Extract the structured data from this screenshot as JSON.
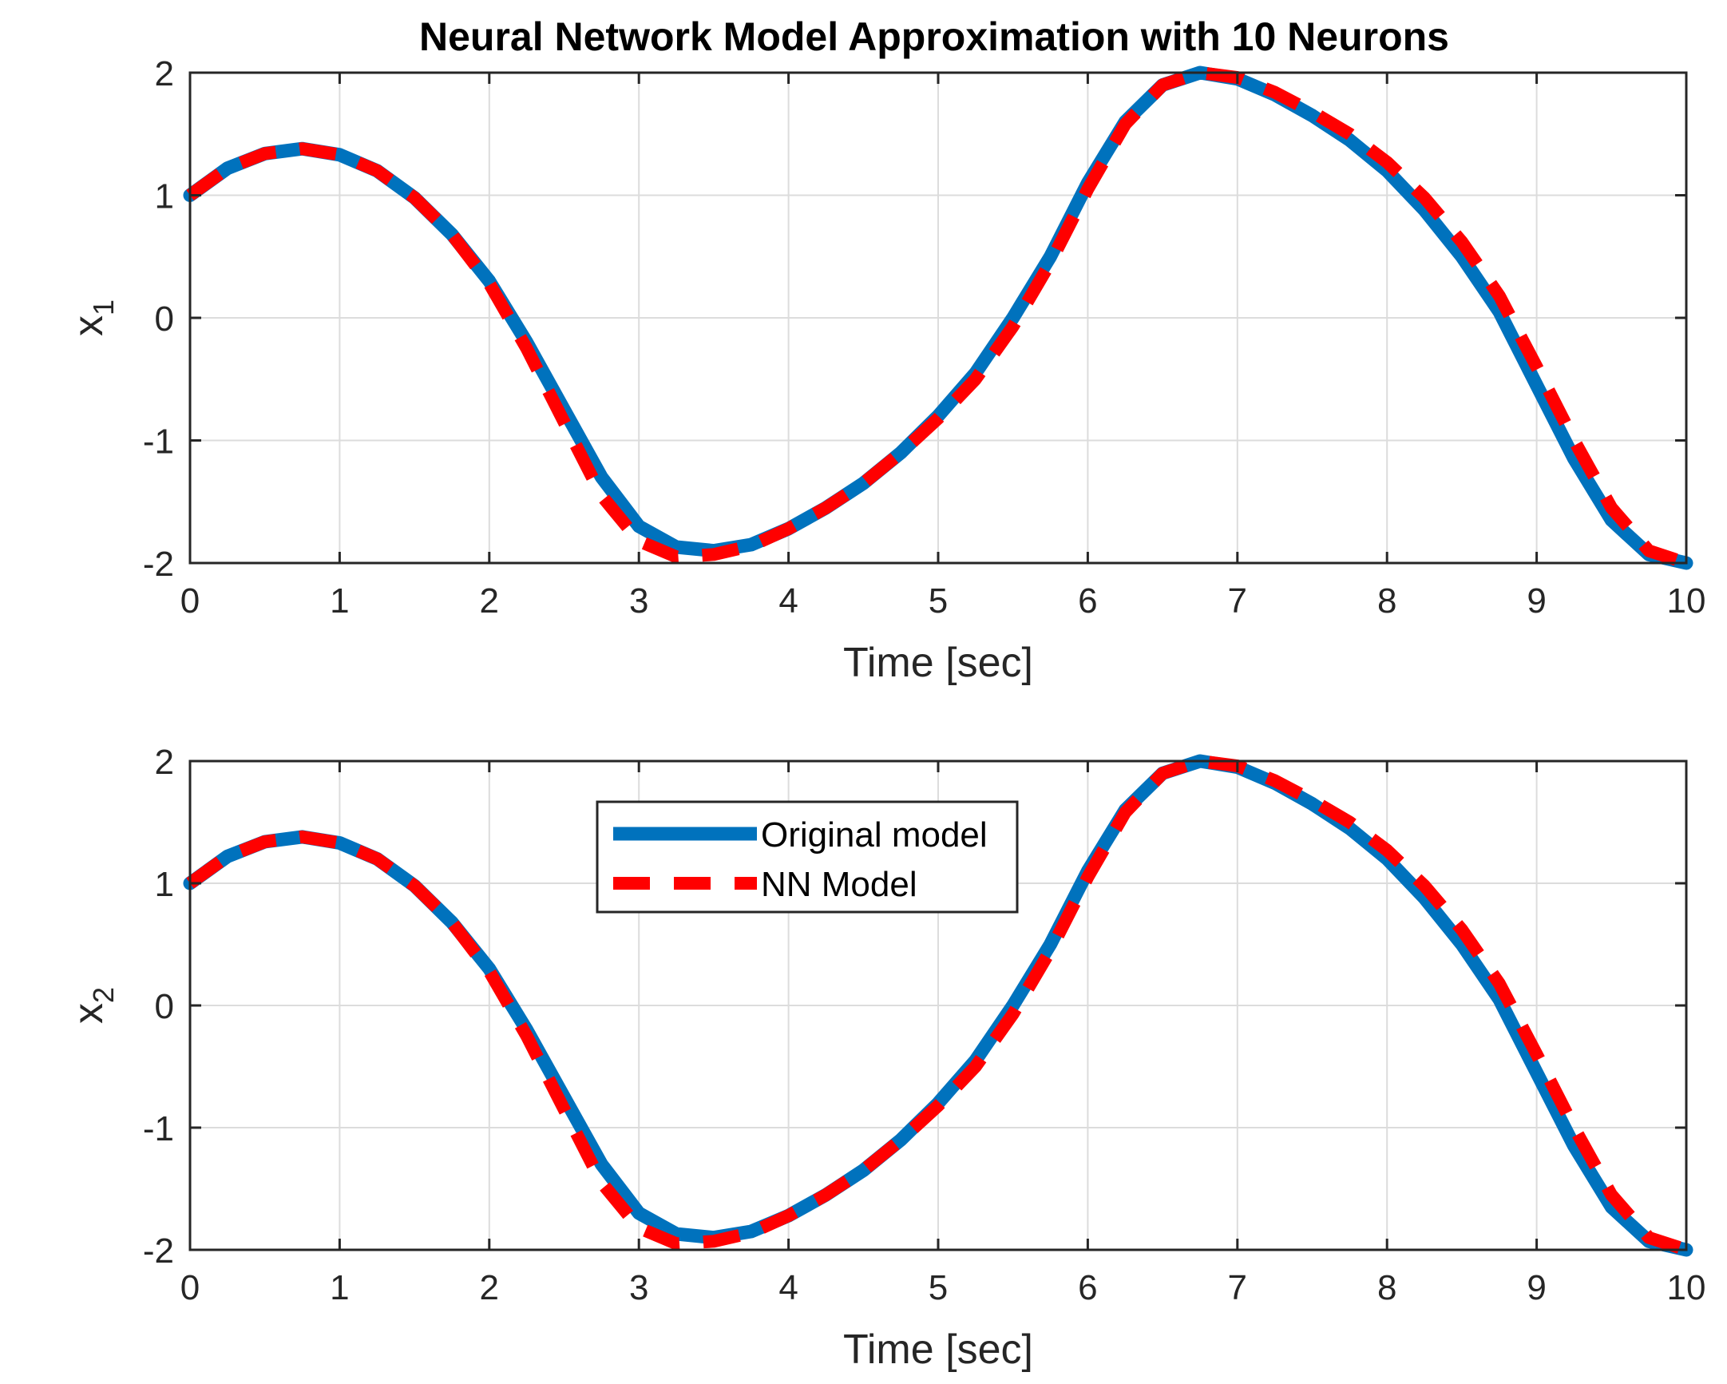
{
  "chart_data": [
    {
      "type": "line",
      "title": "Neural Network Model Approximation with 10 Neurons",
      "xlabel": "Time [sec]",
      "ylabel": "x",
      "ylabel_subscript": "1",
      "xlim": [
        0,
        10
      ],
      "ylim": [
        -2,
        2
      ],
      "xticks": [
        "0",
        "1",
        "2",
        "3",
        "4",
        "5",
        "6",
        "7",
        "8",
        "9",
        "10"
      ],
      "yticks": [
        "-2",
        "-1",
        "0",
        "1",
        "2"
      ],
      "grid": true,
      "legend": false,
      "x": [
        0,
        0.25,
        0.5,
        0.75,
        1,
        1.25,
        1.5,
        1.75,
        2,
        2.25,
        2.5,
        2.75,
        3,
        3.25,
        3.5,
        3.75,
        4,
        4.25,
        4.5,
        4.75,
        5,
        5.25,
        5.5,
        5.75,
        6,
        6.25,
        6.5,
        6.75,
        7,
        7.25,
        7.5,
        7.75,
        8,
        8.25,
        8.5,
        8.75,
        9,
        9.25,
        9.5,
        9.75,
        10
      ],
      "series": [
        {
          "name": "Original model",
          "color": "#0072BD",
          "style": "solid",
          "values": [
            1.0,
            1.22,
            1.34,
            1.38,
            1.33,
            1.2,
            0.98,
            0.68,
            0.3,
            -0.2,
            -0.75,
            -1.3,
            -1.7,
            -1.87,
            -1.9,
            -1.85,
            -1.72,
            -1.55,
            -1.35,
            -1.1,
            -0.8,
            -0.45,
            0.0,
            0.5,
            1.1,
            1.6,
            1.9,
            2.0,
            1.95,
            1.82,
            1.65,
            1.45,
            1.2,
            0.88,
            0.5,
            0.05,
            -0.55,
            -1.15,
            -1.65,
            -1.93,
            -2.0
          ]
        },
        {
          "name": "NN Model",
          "color": "#FF0000",
          "style": "dashed",
          "values": [
            1.0,
            1.22,
            1.34,
            1.38,
            1.33,
            1.2,
            0.98,
            0.68,
            0.28,
            -0.25,
            -0.85,
            -1.45,
            -1.82,
            -1.95,
            -1.93,
            -1.86,
            -1.72,
            -1.55,
            -1.35,
            -1.1,
            -0.82,
            -0.5,
            -0.07,
            0.45,
            1.05,
            1.58,
            1.9,
            2.0,
            1.96,
            1.84,
            1.68,
            1.5,
            1.27,
            0.98,
            0.62,
            0.18,
            -0.4,
            -1.0,
            -1.55,
            -1.9,
            -2.0
          ]
        }
      ]
    },
    {
      "type": "line",
      "xlabel": "Time [sec]",
      "ylabel": "x",
      "ylabel_subscript": "2",
      "xlim": [
        0,
        10
      ],
      "ylim": [
        -2,
        2
      ],
      "xticks": [
        "0",
        "1",
        "2",
        "3",
        "4",
        "5",
        "6",
        "7",
        "8",
        "9",
        "10"
      ],
      "yticks": [
        "-2",
        "-1",
        "0",
        "1",
        "2"
      ],
      "grid": true,
      "legend": true,
      "legend_position": "top-center",
      "x": [
        0,
        0.25,
        0.5,
        0.75,
        1,
        1.25,
        1.5,
        1.75,
        2,
        2.25,
        2.5,
        2.75,
        3,
        3.25,
        3.5,
        3.75,
        4,
        4.25,
        4.5,
        4.75,
        5,
        5.25,
        5.5,
        5.75,
        6,
        6.25,
        6.5,
        6.75,
        7,
        7.25,
        7.5,
        7.75,
        8,
        8.25,
        8.5,
        8.75,
        9,
        9.25,
        9.5,
        9.75,
        10
      ],
      "series": [
        {
          "name": "Original model",
          "color": "#0072BD",
          "style": "solid",
          "values": [
            1.0,
            1.22,
            1.34,
            1.38,
            1.33,
            1.2,
            0.98,
            0.68,
            0.3,
            -0.2,
            -0.75,
            -1.3,
            -1.7,
            -1.87,
            -1.9,
            -1.85,
            -1.72,
            -1.55,
            -1.35,
            -1.1,
            -0.8,
            -0.45,
            0.0,
            0.5,
            1.1,
            1.6,
            1.9,
            2.0,
            1.95,
            1.82,
            1.65,
            1.45,
            1.2,
            0.88,
            0.5,
            0.05,
            -0.55,
            -1.15,
            -1.65,
            -1.93,
            -2.0
          ]
        },
        {
          "name": "NN Model",
          "color": "#FF0000",
          "style": "dashed",
          "values": [
            1.0,
            1.22,
            1.34,
            1.38,
            1.33,
            1.2,
            0.98,
            0.68,
            0.28,
            -0.25,
            -0.85,
            -1.45,
            -1.82,
            -1.95,
            -1.93,
            -1.86,
            -1.72,
            -1.55,
            -1.35,
            -1.1,
            -0.82,
            -0.5,
            -0.07,
            0.45,
            1.05,
            1.58,
            1.9,
            2.0,
            1.96,
            1.84,
            1.68,
            1.5,
            1.27,
            0.98,
            0.62,
            0.18,
            -0.4,
            -1.0,
            -1.55,
            -1.9,
            -2.0
          ]
        }
      ]
    }
  ]
}
